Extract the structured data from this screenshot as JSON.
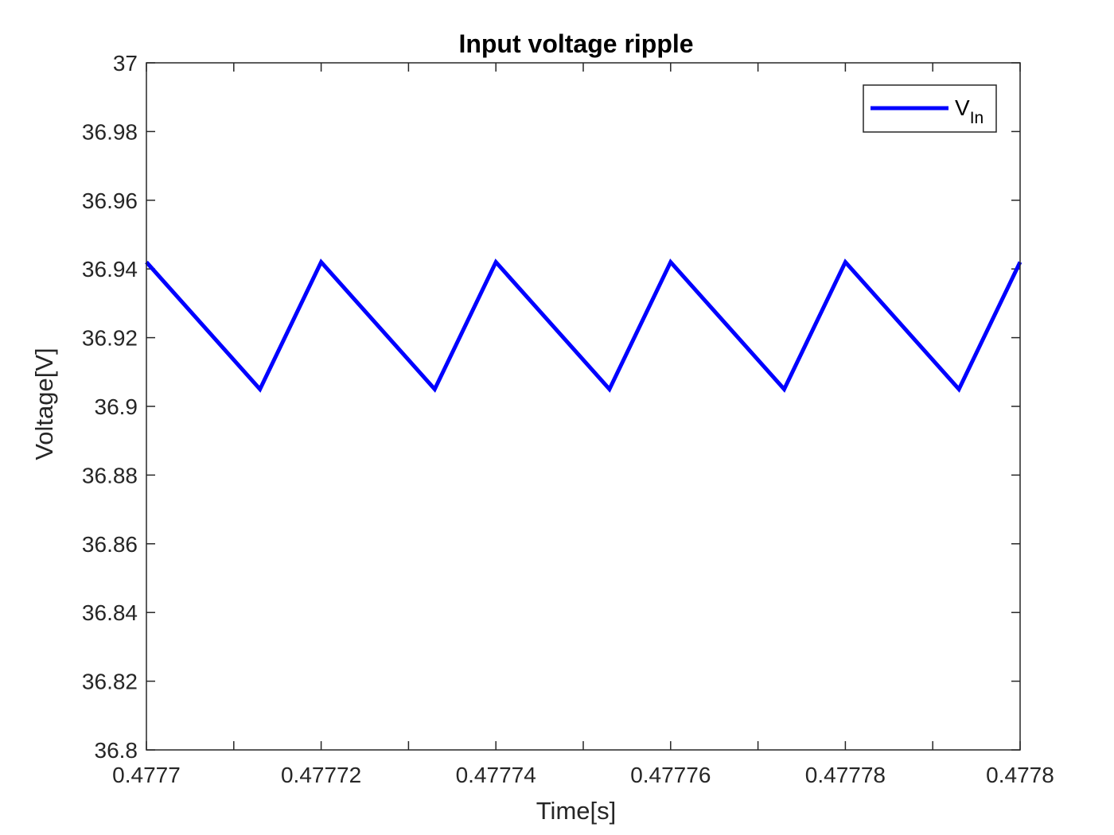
{
  "chart_data": {
    "type": "line",
    "title": "Input voltage ripple",
    "xlabel": "Time[s]",
    "ylabel": "Voltage[V]",
    "xlim": [
      0.4777,
      0.4778
    ],
    "ylim": [
      36.8,
      37
    ],
    "x_ticks": [
      0.4777,
      0.47772,
      0.47774,
      0.47776,
      0.47778,
      0.4778
    ],
    "x_tick_labels": [
      "0.4777",
      "0.47772",
      "0.47774",
      "0.47776",
      "0.47778",
      "0.4778"
    ],
    "x_minor_ticks": [
      0.47771,
      0.47773,
      0.47775,
      0.47777,
      0.47779
    ],
    "y_ticks": [
      36.8,
      36.82,
      36.84,
      36.86,
      36.88,
      36.9,
      36.92,
      36.94,
      36.96,
      36.98,
      37
    ],
    "y_tick_labels": [
      "36.8",
      "36.82",
      "36.84",
      "36.86",
      "36.88",
      "36.9",
      "36.92",
      "36.94",
      "36.96",
      "36.98",
      "37"
    ],
    "grid": false,
    "legend_position": "top-right",
    "series": [
      {
        "name": "V",
        "name_subscript": "In",
        "color": "#0000ff",
        "x": [
          0.4777,
          0.477713,
          0.47772,
          0.477733,
          0.47774,
          0.477753,
          0.47776,
          0.477773,
          0.47778,
          0.477793,
          0.4778
        ],
        "y": [
          36.942,
          36.905,
          36.942,
          36.905,
          36.942,
          36.905,
          36.942,
          36.905,
          36.942,
          36.905,
          36.942
        ]
      }
    ]
  }
}
